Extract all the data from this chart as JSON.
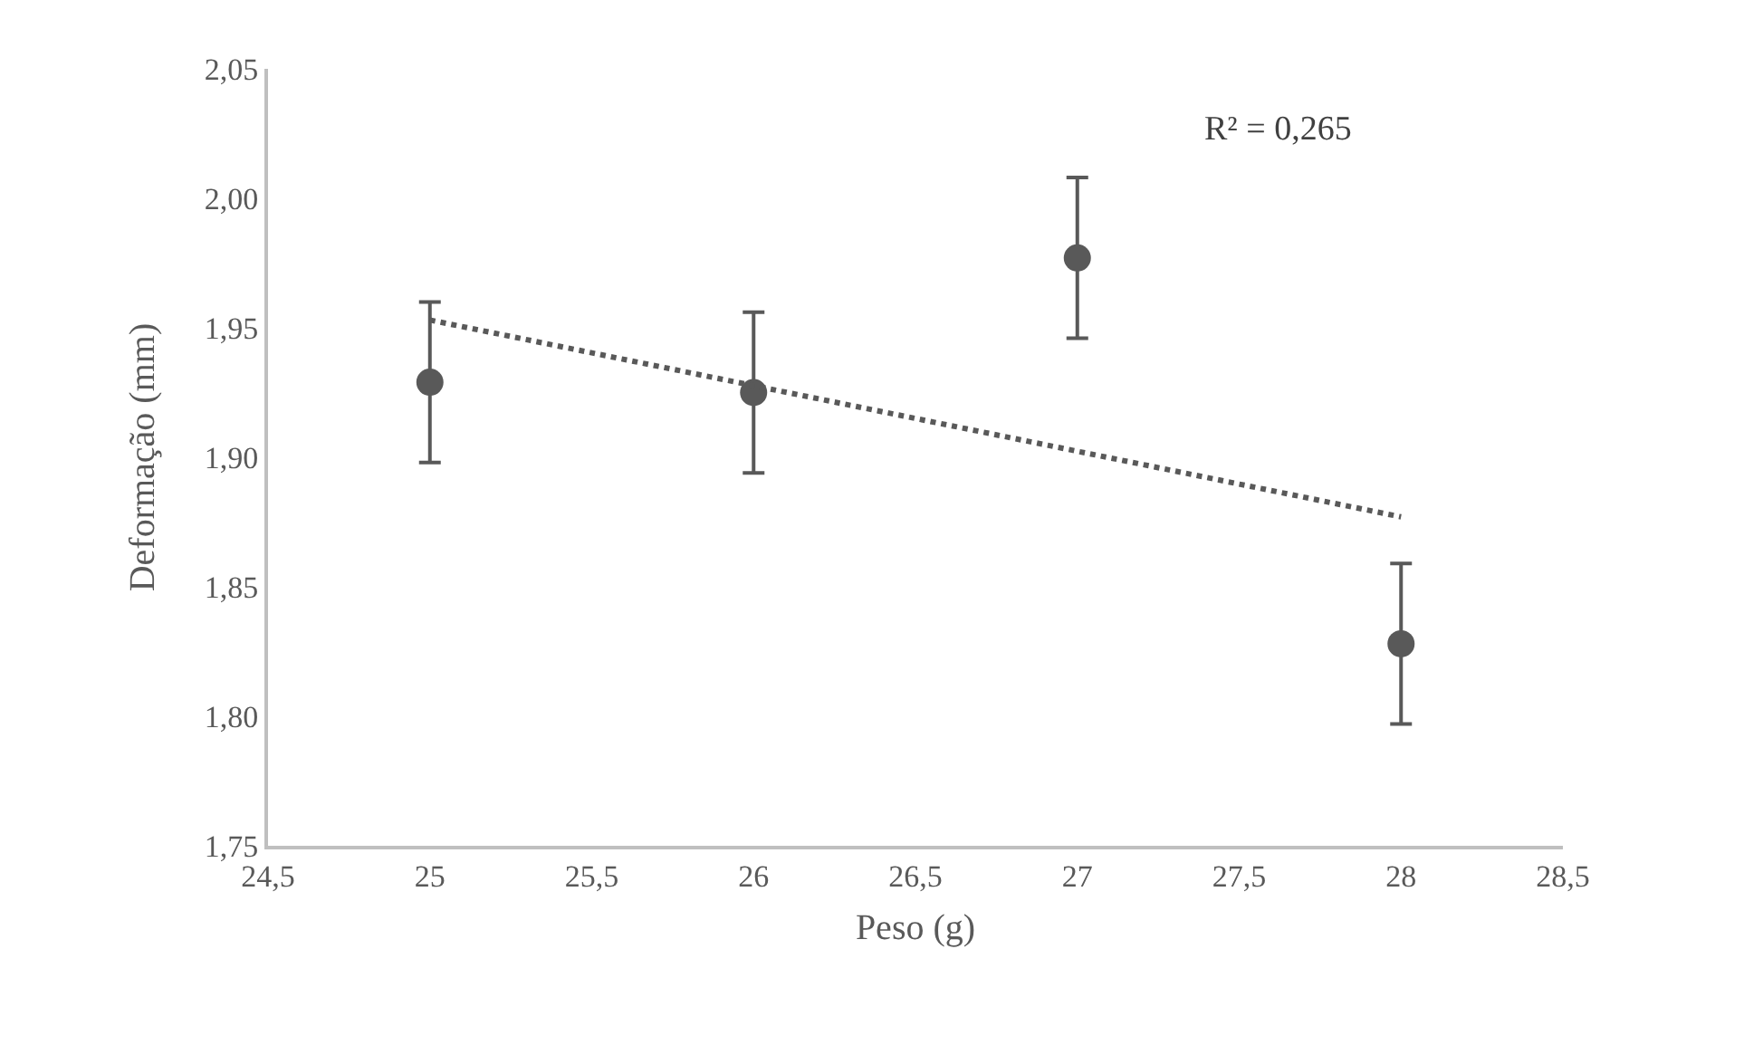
{
  "chart_data": {
    "type": "scatter",
    "xlabel": "Peso (g)",
    "ylabel": "Deformação (mm)",
    "x": [
      25,
      26,
      27,
      28
    ],
    "series": [
      {
        "color": "#595959",
        "values": [
          1.929,
          1.925,
          1.977,
          1.828
        ],
        "errors": [
          0.031,
          0.031,
          0.031,
          0.031
        ],
        "marker": "circle"
      },
      {
        "type": "line",
        "color": "#595959",
        "x": [
          25,
          28
        ],
        "values": [
          1.953,
          1.877
        ],
        "line_style": "dotted",
        "marker": "none"
      }
    ],
    "xlim": [
      24.5,
      28.5
    ],
    "xticks": [
      {
        "value": 24.5,
        "label": "24,5"
      },
      25,
      {
        "value": 25.5,
        "label": "25,5"
      },
      26,
      {
        "value": 26.5,
        "label": "26,5"
      },
      27,
      {
        "value": 27.5,
        "label": "27,5"
      },
      28,
      {
        "value": 28.5,
        "label": "28,5"
      }
    ],
    "ylim": [
      1.75,
      2.05
    ],
    "yticks": [
      {
        "value": 1.75,
        "label": "1,75"
      },
      {
        "value": 1.8,
        "label": "1,80"
      },
      {
        "value": 1.85,
        "label": "1,85"
      },
      {
        "value": 1.9,
        "label": "1,90"
      },
      {
        "value": 1.95,
        "label": "1,95"
      },
      {
        "value": 2,
        "label": "2,00"
      },
      {
        "value": 2.05,
        "label": "2,05"
      }
    ],
    "annotations": [
      "R² = 0,265"
    ],
    "grid": false
  }
}
